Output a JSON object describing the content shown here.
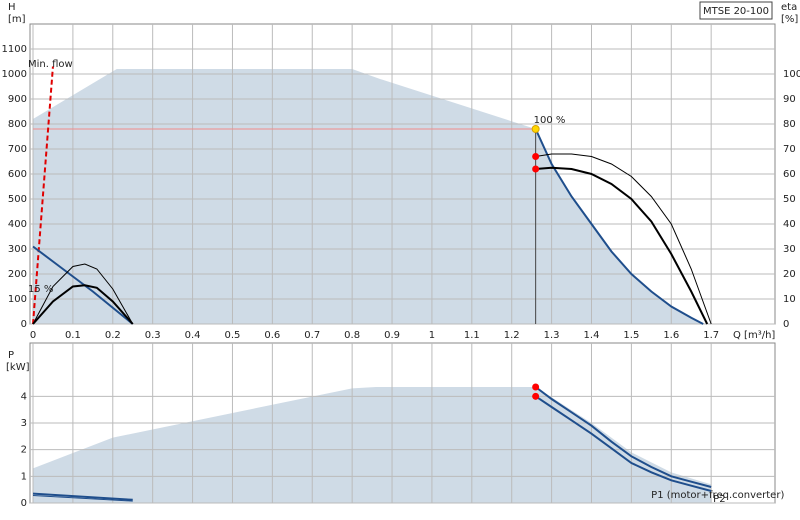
{
  "chart_data": [
    {
      "type": "line",
      "title": "MTSE 20-100",
      "y_label": "H",
      "y_unit": "[m]",
      "y2_label": "eta",
      "y2_unit": "[%]",
      "x_label": "Q [m³/h]",
      "xlim": [
        0,
        1.86
      ],
      "xticks": [
        0,
        0.1,
        0.2,
        0.3,
        0.4,
        0.5,
        0.6,
        0.7,
        0.8,
        0.9,
        1,
        1.1,
        1.2,
        1.3,
        1.4,
        1.5,
        1.6,
        1.7
      ],
      "ylim": [
        0,
        1200
      ],
      "yticks": [
        0,
        100,
        200,
        300,
        400,
        500,
        600,
        700,
        800,
        900,
        1000,
        1100
      ],
      "y2lim": [
        0,
        120
      ],
      "y2ticks": [
        0,
        10,
        20,
        30,
        40,
        50,
        60,
        70,
        80,
        90,
        100
      ],
      "grid": true,
      "areas": [
        {
          "color": "#cfdbe6",
          "x": [
            0,
            0.21,
            0.8,
            0.87,
            1.26,
            1.3,
            1.35,
            1.4,
            1.45,
            1.5,
            1.55,
            1.6,
            1.65,
            1.68
          ],
          "values": [
            820,
            1020,
            1020,
            980,
            780,
            640,
            510,
            400,
            290,
            200,
            130,
            70,
            25,
            0
          ]
        }
      ],
      "series": [
        {
          "color": "#f28b8b",
          "width": 1,
          "x": [
            0,
            1.26
          ],
          "values": [
            780,
            780
          ]
        },
        {
          "color": "#444444",
          "width": 1,
          "x": [
            1.26,
            1.26
          ],
          "values": [
            780,
            0
          ]
        },
        {
          "color": "#e00000",
          "width": 2,
          "dash": true,
          "x": [
            0,
            0.05
          ],
          "values": [
            0,
            1030
          ]
        },
        {
          "color": "#1f4e8c",
          "width": 2,
          "x": [
            0,
            0.05,
            0.1,
            0.15,
            0.2,
            0.25
          ],
          "values": [
            310,
            250,
            190,
            130,
            65,
            0
          ]
        },
        {
          "color": "#1f4e8c",
          "width": 2,
          "x": [
            1.26,
            1.3,
            1.35,
            1.4,
            1.45,
            1.5,
            1.55,
            1.6,
            1.65,
            1.68
          ],
          "values": [
            780,
            640,
            510,
            400,
            290,
            200,
            130,
            70,
            25,
            0
          ]
        },
        {
          "color": "#000000",
          "width": 1,
          "axis": "y2",
          "x": [
            0,
            0.05,
            0.1,
            0.13,
            0.16,
            0.2,
            0.25
          ],
          "values": [
            0,
            15,
            23,
            24,
            22,
            14,
            0
          ]
        },
        {
          "color": "#000000",
          "width": 2,
          "axis": "y2",
          "x": [
            0,
            0.05,
            0.1,
            0.13,
            0.16,
            0.2,
            0.25
          ],
          "values": [
            0,
            9,
            15,
            15.5,
            14.5,
            9,
            0
          ]
        },
        {
          "color": "#000000",
          "width": 1,
          "axis": "y2",
          "x": [
            1.26,
            1.3,
            1.35,
            1.4,
            1.45,
            1.5,
            1.55,
            1.6,
            1.65,
            1.7
          ],
          "values": [
            67,
            68,
            68,
            67,
            64,
            59,
            51,
            40,
            22,
            0
          ]
        },
        {
          "color": "#000000",
          "width": 2,
          "axis": "y2",
          "x": [
            1.26,
            1.3,
            1.35,
            1.4,
            1.45,
            1.5,
            1.55,
            1.6,
            1.65,
            1.69
          ],
          "values": [
            62,
            62.5,
            62,
            60,
            56,
            50,
            41,
            28,
            13,
            0
          ]
        }
      ],
      "points": [
        {
          "x": 1.26,
          "y": 780,
          "color": "#ffd700",
          "label": "100 %"
        },
        {
          "x": 1.26,
          "y": 67,
          "color": "#ff0000",
          "axis": "y2"
        },
        {
          "x": 1.26,
          "y": 62,
          "color": "#ff0000",
          "axis": "y2"
        }
      ],
      "annotations": [
        {
          "text": "Min. flow",
          "x": 0,
          "y": 1040,
          "color": "#e00000"
        },
        {
          "text": "15 %",
          "x": 0,
          "y": 140,
          "color": "#000000"
        }
      ]
    },
    {
      "type": "line",
      "y_label": "P",
      "y_unit": "[kW]",
      "xlim": [
        0,
        1.86
      ],
      "xticks": [
        0,
        0.1,
        0.2,
        0.3,
        0.4,
        0.5,
        0.6,
        0.7,
        0.8,
        0.9,
        1,
        1.1,
        1.2,
        1.3,
        1.4,
        1.5,
        1.6,
        1.7
      ],
      "ylim": [
        0,
        6
      ],
      "yticks": [
        0,
        1,
        2,
        3,
        4
      ],
      "grid": true,
      "areas": [
        {
          "color": "#cfdbe6",
          "x": [
            0,
            0.2,
            0.8,
            0.86,
            1.26,
            1.4,
            1.5,
            1.6,
            1.7
          ],
          "values": [
            1.3,
            2.45,
            4.3,
            4.35,
            4.35,
            3.0,
            1.9,
            1.15,
            0.7
          ]
        }
      ],
      "series": [
        {
          "name": "P1 (motor+freq.converter)",
          "color": "#1f4e8c",
          "width": 2,
          "x": [
            1.26,
            1.3,
            1.35,
            1.4,
            1.45,
            1.5,
            1.55,
            1.6,
            1.65,
            1.7
          ],
          "values": [
            4.35,
            3.9,
            3.4,
            2.9,
            2.3,
            1.75,
            1.35,
            1.0,
            0.8,
            0.6
          ]
        },
        {
          "name": "P2",
          "color": "#1f4e8c",
          "width": 2,
          "x": [
            1.26,
            1.3,
            1.35,
            1.4,
            1.45,
            1.5,
            1.55,
            1.6,
            1.65,
            1.7
          ],
          "values": [
            4.0,
            3.6,
            3.1,
            2.6,
            2.05,
            1.5,
            1.15,
            0.85,
            0.65,
            0.45
          ]
        },
        {
          "color": "#1f4e8c",
          "width": 2,
          "x": [
            0,
            0.25
          ],
          "values": [
            0.35,
            0.12
          ]
        },
        {
          "color": "#1f4e8c",
          "width": 1,
          "x": [
            0,
            0.25
          ],
          "values": [
            0.28,
            0.07
          ]
        }
      ],
      "points": [
        {
          "x": 1.26,
          "y": 4.35,
          "color": "#ff0000"
        },
        {
          "x": 1.26,
          "y": 4.0,
          "color": "#ff0000"
        }
      ]
    }
  ]
}
